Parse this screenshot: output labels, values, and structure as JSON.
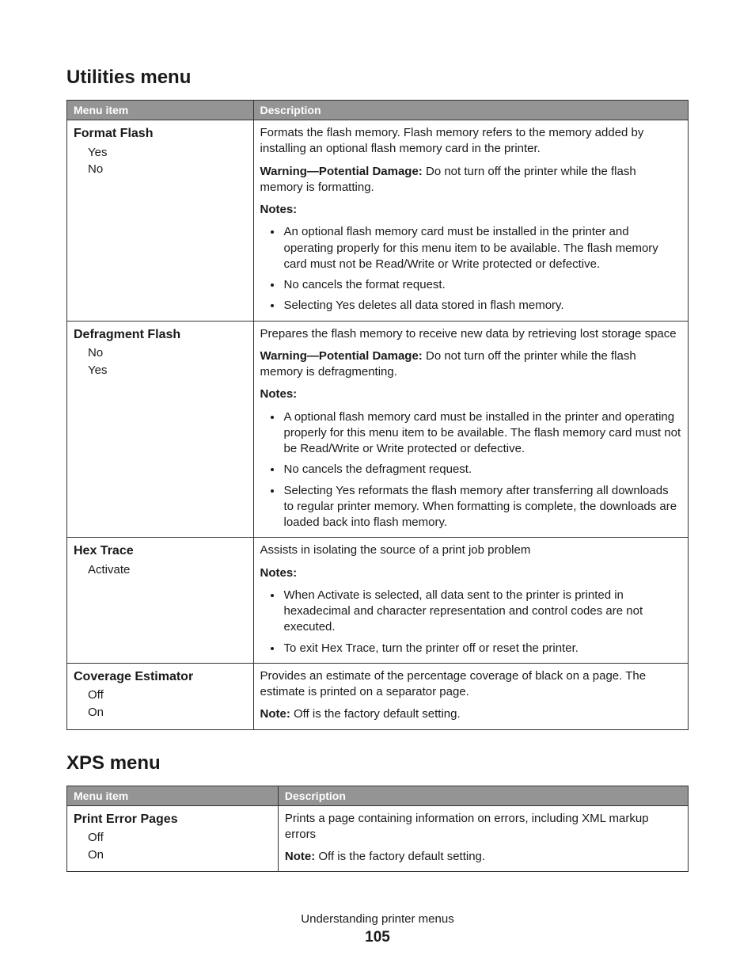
{
  "section1": {
    "heading": "Utilities menu",
    "headers": {
      "col1": "Menu item",
      "col2": "Description"
    },
    "rows": [
      {
        "item_title": "Format Flash",
        "options": [
          "Yes",
          "No"
        ],
        "desc_intro": "Formats the flash memory. Flash memory refers to the memory added by installing an optional flash memory card in the printer.",
        "warning_label": "Warning—Potential Damage:",
        "warning_text": " Do not turn off the printer while the flash memory is formatting.",
        "notes_label": "Notes:",
        "bullets": [
          "An optional flash memory card must be installed in the printer and operating properly for this menu item to be available. The flash memory card must not be Read/Write or Write protected or defective.",
          "No cancels the format request.",
          "Selecting Yes deletes all data stored in flash memory."
        ]
      },
      {
        "item_title": "Defragment Flash",
        "options": [
          "No",
          "Yes"
        ],
        "desc_intro": "Prepares the flash memory to receive new data by retrieving lost storage space",
        "warning_label": "Warning—Potential Damage:",
        "warning_text": " Do not turn off the printer while the flash memory is defragmenting.",
        "notes_label": "Notes:",
        "bullets": [
          "A optional flash memory card must be installed in the printer and operating properly for this menu item to be available. The flash memory card must not be Read/Write or Write protected or defective.",
          "No cancels the defragment request.",
          "Selecting Yes reformats the flash memory after transferring all downloads to regular printer memory. When formatting is complete, the downloads are loaded back into flash memory."
        ]
      },
      {
        "item_title": "Hex Trace",
        "options": [
          "Activate"
        ],
        "desc_intro": "Assists in isolating the source of a print job problem",
        "notes_label": "Notes:",
        "bullets": [
          "When Activate is selected, all data sent to the printer is printed in hexadecimal and character representation and control codes are not executed.",
          "To exit Hex Trace, turn the printer off or reset the printer."
        ]
      },
      {
        "item_title": "Coverage Estimator",
        "options": [
          "Off",
          "On"
        ],
        "desc_intro": "Provides an estimate of the percentage coverage of black on a page. The estimate is printed on a separator page.",
        "note_label": "Note:",
        "note_text": " Off is the factory default setting."
      }
    ]
  },
  "section2": {
    "heading": "XPS menu",
    "headers": {
      "col1": "Menu item",
      "col2": "Description"
    },
    "rows": [
      {
        "item_title": "Print Error Pages",
        "options": [
          "Off",
          "On"
        ],
        "desc_intro": "Prints a page containing information on errors, including XML markup errors",
        "note_label": "Note:",
        "note_text": " Off is the factory default setting."
      }
    ]
  },
  "footer": {
    "title": "Understanding printer menus",
    "page": "105"
  }
}
